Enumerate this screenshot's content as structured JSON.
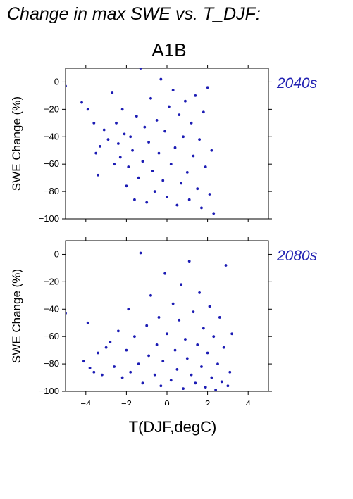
{
  "page": {
    "title": "Change in max SWE vs. T_DJF:",
    "scenario": "A1B",
    "xlabel": "T(DJF,degC)"
  },
  "colors": {
    "points": "#1c1cb4",
    "period_labels": "#2323b3",
    "axes": "#000000"
  },
  "chart_data": [
    {
      "type": "scatter",
      "period": "2040s",
      "ylabel": "SWE Change (%)",
      "xlim": [
        -5,
        5
      ],
      "ylim": [
        -100,
        10
      ],
      "xticks": [
        -4,
        -2,
        0,
        2,
        4
      ],
      "yticks": [
        0,
        -20,
        -40,
        -60,
        -80,
        -100
      ],
      "xticklabels": [],
      "yticklabels": [
        "0",
        "−20",
        "−40",
        "−60",
        "−80",
        "−100"
      ],
      "series": [
        {
          "points": [
            [
              -5.0,
              -3
            ],
            [
              -4.2,
              -15
            ],
            [
              -3.9,
              -20
            ],
            [
              -3.6,
              -30
            ],
            [
              -3.5,
              -52
            ],
            [
              -3.4,
              -68
            ],
            [
              -3.3,
              -47
            ],
            [
              -3.1,
              -35
            ],
            [
              -2.9,
              -42
            ],
            [
              -2.7,
              -8
            ],
            [
              -2.6,
              -60
            ],
            [
              -2.5,
              -30
            ],
            [
              -2.4,
              -45
            ],
            [
              -2.3,
              -55
            ],
            [
              -2.2,
              -20
            ],
            [
              -2.1,
              -38
            ],
            [
              -2.0,
              -76
            ],
            [
              -1.9,
              -62
            ],
            [
              -1.8,
              -40
            ],
            [
              -1.7,
              -50
            ],
            [
              -1.6,
              -86
            ],
            [
              -1.5,
              -25
            ],
            [
              -1.4,
              -70
            ],
            [
              -1.3,
              10
            ],
            [
              -1.2,
              -58
            ],
            [
              -1.1,
              -33
            ],
            [
              -1.0,
              -88
            ],
            [
              -0.9,
              -44
            ],
            [
              -0.8,
              -12
            ],
            [
              -0.7,
              -65
            ],
            [
              -0.6,
              -80
            ],
            [
              -0.5,
              -28
            ],
            [
              -0.4,
              -52
            ],
            [
              -0.3,
              2
            ],
            [
              -0.2,
              -72
            ],
            [
              -0.1,
              -36
            ],
            [
              0.0,
              -84
            ],
            [
              0.1,
              -18
            ],
            [
              0.2,
              -60
            ],
            [
              0.3,
              -6
            ],
            [
              0.4,
              -48
            ],
            [
              0.5,
              -90
            ],
            [
              0.6,
              -24
            ],
            [
              0.7,
              -74
            ],
            [
              0.8,
              -40
            ],
            [
              0.9,
              -14
            ],
            [
              1.0,
              -66
            ],
            [
              1.1,
              -86
            ],
            [
              1.2,
              -30
            ],
            [
              1.3,
              -54
            ],
            [
              1.4,
              -10
            ],
            [
              1.5,
              -78
            ],
            [
              1.6,
              -42
            ],
            [
              1.7,
              -92
            ],
            [
              1.8,
              -22
            ],
            [
              1.9,
              -62
            ],
            [
              2.0,
              -4
            ],
            [
              2.1,
              -82
            ],
            [
              2.2,
              -50
            ],
            [
              2.3,
              -96
            ]
          ]
        }
      ]
    },
    {
      "type": "scatter",
      "period": "2080s",
      "ylabel": "SWE Change (%)",
      "xlim": [
        -5,
        5
      ],
      "ylim": [
        -100,
        10
      ],
      "xticks": [
        -4,
        -2,
        0,
        2,
        4
      ],
      "yticks": [
        0,
        -20,
        -40,
        -60,
        -80,
        -100
      ],
      "xticklabels": [
        "−4",
        "−2",
        "0",
        "2",
        "4"
      ],
      "yticklabels": [
        "0",
        "−20",
        "−40",
        "−60",
        "−80",
        "−100"
      ],
      "series": [
        {
          "points": [
            [
              -5.0,
              -43
            ],
            [
              -4.1,
              -78
            ],
            [
              -3.9,
              -50
            ],
            [
              -3.8,
              -83
            ],
            [
              -3.6,
              -86
            ],
            [
              -3.4,
              -72
            ],
            [
              -3.2,
              -88
            ],
            [
              -3.0,
              -68
            ],
            [
              -2.8,
              -64
            ],
            [
              -2.6,
              -82
            ],
            [
              -2.4,
              -56
            ],
            [
              -2.2,
              -90
            ],
            [
              -2.0,
              -70
            ],
            [
              -1.9,
              -40
            ],
            [
              -1.8,
              -86
            ],
            [
              -1.6,
              -60
            ],
            [
              -1.4,
              -80
            ],
            [
              -1.3,
              1
            ],
            [
              -1.2,
              -94
            ],
            [
              -1.0,
              -52
            ],
            [
              -0.9,
              -74
            ],
            [
              -0.8,
              -30
            ],
            [
              -0.6,
              -88
            ],
            [
              -0.5,
              -66
            ],
            [
              -0.4,
              -46
            ],
            [
              -0.3,
              -96
            ],
            [
              -0.2,
              -78
            ],
            [
              -0.1,
              -14
            ],
            [
              0.0,
              -58
            ],
            [
              0.2,
              -92
            ],
            [
              0.3,
              -36
            ],
            [
              0.4,
              -70
            ],
            [
              0.5,
              -84
            ],
            [
              0.6,
              -48
            ],
            [
              0.7,
              -22
            ],
            [
              0.8,
              -98
            ],
            [
              0.9,
              -62
            ],
            [
              1.0,
              -76
            ],
            [
              1.1,
              -5
            ],
            [
              1.2,
              -88
            ],
            [
              1.3,
              -42
            ],
            [
              1.4,
              -94
            ],
            [
              1.5,
              -66
            ],
            [
              1.6,
              -28
            ],
            [
              1.7,
              -82
            ],
            [
              1.8,
              -54
            ],
            [
              1.9,
              -97
            ],
            [
              2.0,
              -72
            ],
            [
              2.1,
              -38
            ],
            [
              2.2,
              -90
            ],
            [
              2.3,
              -60
            ],
            [
              2.4,
              -99
            ],
            [
              2.5,
              -80
            ],
            [
              2.6,
              -46
            ],
            [
              2.7,
              -93
            ],
            [
              2.8,
              -68
            ],
            [
              2.9,
              -8
            ],
            [
              3.0,
              -96
            ],
            [
              3.1,
              -86
            ],
            [
              3.2,
              -58
            ]
          ]
        }
      ]
    }
  ]
}
